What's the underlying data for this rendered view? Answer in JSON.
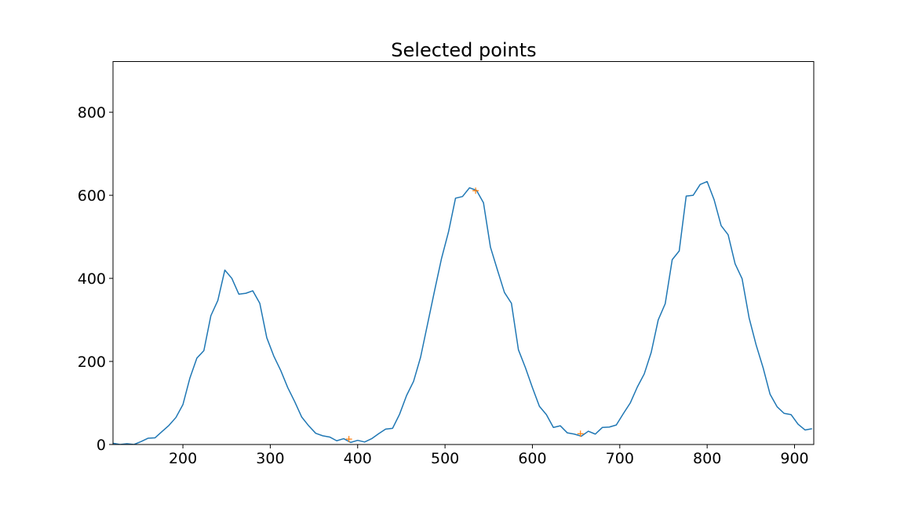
{
  "chart_data": {
    "type": "line",
    "title": "Selected points",
    "xlabel": "",
    "ylabel": "",
    "xlim": [
      120,
      922
    ],
    "ylim": [
      0,
      922
    ],
    "xticks": [
      200,
      300,
      400,
      500,
      600,
      700,
      800,
      900
    ],
    "yticks": [
      0,
      200,
      400,
      600,
      800
    ],
    "grid": false,
    "series": [
      {
        "color": "#1f77b4",
        "x": [
          120,
          128,
          136,
          144,
          152,
          160,
          168,
          176,
          184,
          192,
          200,
          208,
          216,
          224,
          232,
          240,
          248,
          256,
          264,
          272,
          280,
          288,
          296,
          304,
          312,
          320,
          328,
          336,
          344,
          352,
          360,
          368,
          376,
          384,
          392,
          400,
          408,
          416,
          424,
          432,
          440,
          448,
          456,
          464,
          472,
          480,
          488,
          496,
          504,
          512,
          520,
          528,
          536,
          544,
          552,
          560,
          568,
          576,
          584,
          592,
          600,
          608,
          616,
          624,
          632,
          640,
          648,
          656,
          664,
          672,
          680,
          688,
          696,
          704,
          712,
          720,
          728,
          736,
          744,
          752,
          760,
          768,
          776,
          784,
          792,
          800,
          808,
          816,
          824,
          832,
          840,
          848,
          856,
          864,
          872,
          880,
          888,
          896,
          904,
          912,
          920
        ],
        "y": [
          3,
          0,
          2,
          0,
          7,
          15,
          16,
          31,
          46,
          65,
          96,
          160,
          208,
          226,
          310,
          347,
          420,
          400,
          362,
          364,
          370,
          340,
          257,
          213,
          178,
          137,
          103,
          66,
          45,
          27,
          21,
          18,
          9,
          14,
          5,
          10,
          6,
          14,
          26,
          37,
          39,
          73,
          118,
          152,
          210,
          290,
          370,
          448,
          512,
          593,
          597,
          618,
          612,
          582,
          475,
          420,
          366,
          340,
          228,
          185,
          137,
          92,
          72,
          41,
          45,
          28,
          25,
          20,
          32,
          25,
          41,
          42,
          47,
          74,
          100,
          138,
          170,
          222,
          300,
          339,
          445,
          466,
          598,
          600,
          626,
          633,
          589,
          527,
          505,
          435,
          399,
          305,
          240,
          185,
          121,
          91,
          75,
          72,
          49,
          35,
          38
        ]
      },
      {
        "color": "#ff7f0e",
        "marker": "+",
        "x": [
          390,
          535,
          655
        ],
        "y": [
          13,
          611,
          26
        ]
      }
    ]
  }
}
